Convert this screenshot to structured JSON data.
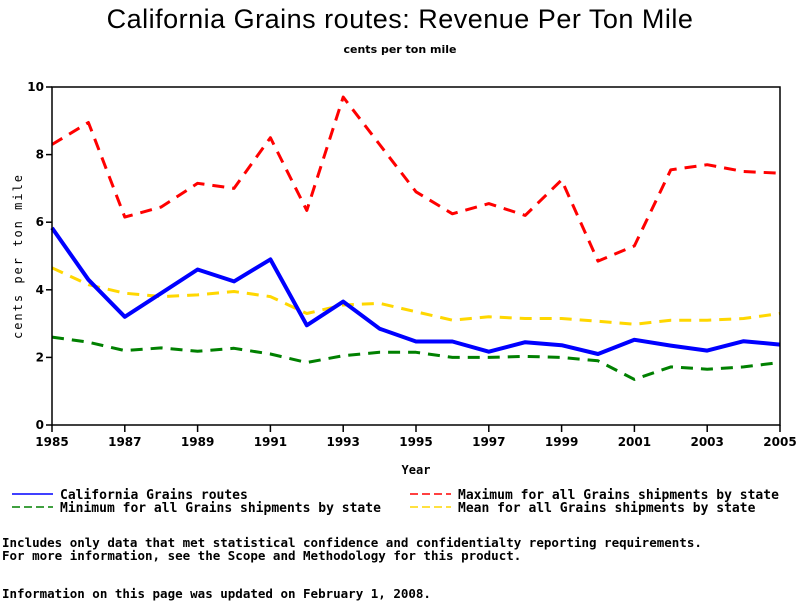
{
  "chart_data": {
    "type": "line",
    "title": "California Grains routes: Revenue Per Ton Mile",
    "subtitle": "cents per ton mile",
    "xlabel": "Year",
    "ylabel": "cents per ton mile",
    "xlim": [
      1985,
      2005
    ],
    "ylim": [
      0,
      10
    ],
    "x": [
      1985,
      1986,
      1987,
      1988,
      1989,
      1990,
      1991,
      1992,
      1993,
      1994,
      1995,
      1996,
      1997,
      1998,
      1999,
      2000,
      2001,
      2002,
      2003,
      2004,
      2005
    ],
    "x_ticks": [
      "1985",
      "1987",
      "1989",
      "1991",
      "1993",
      "1995",
      "1997",
      "1999",
      "2001",
      "2003",
      "2005"
    ],
    "y_ticks": [
      "0",
      "2",
      "4",
      "6",
      "8",
      "10"
    ],
    "grid": false,
    "legend_position": "bottom",
    "series": [
      {
        "name": "California Grains routes",
        "color": "#0000ff",
        "style": "solid",
        "values": [
          5.83,
          4.3,
          3.2,
          3.9,
          4.6,
          4.25,
          4.9,
          2.95,
          3.65,
          2.85,
          2.47,
          2.47,
          2.17,
          2.45,
          2.36,
          2.1,
          2.52,
          2.35,
          2.2,
          2.48,
          2.38
        ]
      },
      {
        "name": "Maximum for all Grains shipments by state",
        "color": "#ff0000",
        "style": "dashed",
        "values": [
          8.3,
          8.95,
          6.15,
          6.45,
          7.15,
          7.0,
          8.5,
          6.35,
          9.7,
          8.3,
          6.9,
          6.25,
          6.55,
          6.2,
          7.25,
          4.85,
          5.3,
          7.55,
          7.7,
          7.5,
          7.45
        ]
      },
      {
        "name": "Minimum for all Grains shipments by state",
        "color": "#008000",
        "style": "dashed",
        "values": [
          2.6,
          2.45,
          2.2,
          2.28,
          2.18,
          2.27,
          2.1,
          1.85,
          2.05,
          2.15,
          2.15,
          2.0,
          2.0,
          2.03,
          2.0,
          1.9,
          1.35,
          1.72,
          1.65,
          1.72,
          1.85
        ]
      },
      {
        "name": "Mean for all Grains shipments by state",
        "color": "#ffd700",
        "style": "dashed",
        "values": [
          4.65,
          4.15,
          3.9,
          3.8,
          3.85,
          3.95,
          3.8,
          3.3,
          3.55,
          3.6,
          3.35,
          3.1,
          3.2,
          3.15,
          3.15,
          3.07,
          2.98,
          3.1,
          3.1,
          3.15,
          3.3
        ]
      }
    ]
  },
  "footnotes": {
    "line1": "Includes only data that met statistical confidence and confidentialty reporting requirements.",
    "line2": "For more information, see the Scope and Methodology for this product.",
    "updated": "Information on this page was updated on February 1, 2008."
  }
}
